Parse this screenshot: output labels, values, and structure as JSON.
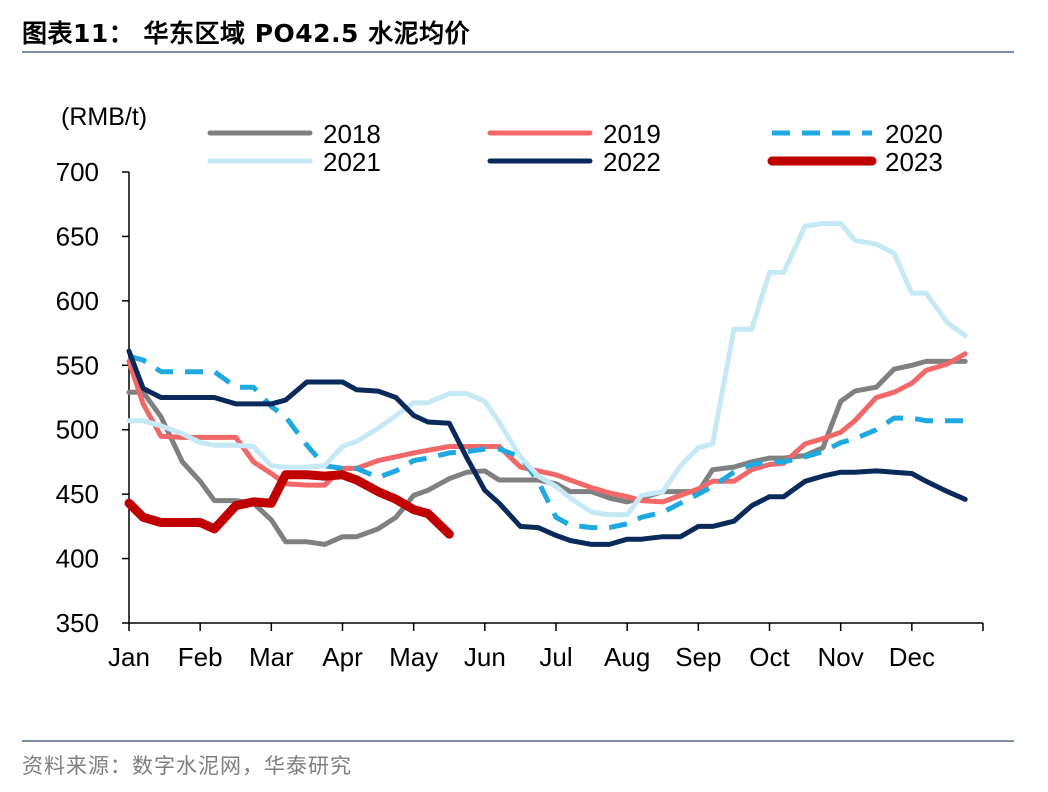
{
  "header": {
    "title": "图表11：  华东区域 PO42.5 水泥均价"
  },
  "footer": {
    "source": "资料来源：数字水泥网，华泰研究"
  },
  "chart_data": {
    "type": "line",
    "title": "图表11：  华东区域 PO42.5 水泥均价",
    "ylabel": "(RMB/t)",
    "xlabel": "",
    "ylim": [
      350,
      700
    ],
    "yticks": [
      350,
      400,
      450,
      500,
      550,
      600,
      650,
      700
    ],
    "xlim": [
      0,
      12
    ],
    "xticks": [
      {
        "label": "Jan",
        "x": 0
      },
      {
        "label": "Feb",
        "x": 1
      },
      {
        "label": "Mar",
        "x": 2
      },
      {
        "label": "Apr",
        "x": 3
      },
      {
        "label": "May",
        "x": 4
      },
      {
        "label": "Jun",
        "x": 5
      },
      {
        "label": "Jul",
        "x": 6
      },
      {
        "label": "Aug",
        "x": 7
      },
      {
        "label": "Sep",
        "x": 8
      },
      {
        "label": "Oct",
        "x": 9
      },
      {
        "label": "Nov",
        "x": 10
      },
      {
        "label": "Dec",
        "x": 11
      }
    ],
    "legend": "top",
    "grid": false,
    "series": [
      {
        "name": "2018",
        "color": "#808080",
        "dash": false,
        "width": 5,
        "points": [
          [
            0.0,
            529
          ],
          [
            0.2,
            529
          ],
          [
            0.45,
            510
          ],
          [
            0.75,
            475
          ],
          [
            1.0,
            460
          ],
          [
            1.2,
            445
          ],
          [
            1.5,
            445
          ],
          [
            1.75,
            443
          ],
          [
            2.0,
            430
          ],
          [
            2.2,
            413
          ],
          [
            2.5,
            413
          ],
          [
            2.75,
            411
          ],
          [
            3.0,
            417
          ],
          [
            3.2,
            417
          ],
          [
            3.5,
            423
          ],
          [
            3.75,
            432
          ],
          [
            4.0,
            449
          ],
          [
            4.2,
            453
          ],
          [
            4.5,
            462
          ],
          [
            4.75,
            467
          ],
          [
            5.0,
            468
          ],
          [
            5.2,
            461
          ],
          [
            5.5,
            461
          ],
          [
            5.75,
            461
          ],
          [
            6.0,
            458
          ],
          [
            6.2,
            452
          ],
          [
            6.5,
            452
          ],
          [
            6.75,
            447
          ],
          [
            7.0,
            444
          ],
          [
            7.2,
            447
          ],
          [
            7.5,
            452
          ],
          [
            7.75,
            452
          ],
          [
            8.0,
            452
          ],
          [
            8.2,
            469
          ],
          [
            8.5,
            471
          ],
          [
            8.75,
            475
          ],
          [
            9.0,
            478
          ],
          [
            9.2,
            478
          ],
          [
            9.5,
            480
          ],
          [
            9.75,
            486
          ],
          [
            10.0,
            522
          ],
          [
            10.2,
            530
          ],
          [
            10.5,
            533
          ],
          [
            10.75,
            547
          ],
          [
            11.0,
            550
          ],
          [
            11.2,
            553
          ],
          [
            11.5,
            553
          ],
          [
            11.75,
            553
          ]
        ]
      },
      {
        "name": "2019",
        "color": "#f26868",
        "dash": false,
        "width": 5,
        "points": [
          [
            0.0,
            553
          ],
          [
            0.2,
            520
          ],
          [
            0.45,
            495
          ],
          [
            0.75,
            494
          ],
          [
            1.0,
            494
          ],
          [
            1.2,
            494
          ],
          [
            1.5,
            494
          ],
          [
            1.75,
            475
          ],
          [
            2.0,
            466
          ],
          [
            2.2,
            458
          ],
          [
            2.5,
            457
          ],
          [
            2.75,
            457
          ],
          [
            3.0,
            470
          ],
          [
            3.2,
            470
          ],
          [
            3.5,
            476
          ],
          [
            3.75,
            479
          ],
          [
            4.0,
            482
          ],
          [
            4.2,
            484
          ],
          [
            4.5,
            487
          ],
          [
            4.75,
            487
          ],
          [
            5.0,
            487
          ],
          [
            5.2,
            487
          ],
          [
            5.5,
            471
          ],
          [
            5.75,
            468
          ],
          [
            6.0,
            465
          ],
          [
            6.2,
            461
          ],
          [
            6.5,
            455
          ],
          [
            6.75,
            451
          ],
          [
            7.0,
            448
          ],
          [
            7.2,
            445
          ],
          [
            7.5,
            444
          ],
          [
            7.75,
            449
          ],
          [
            8.0,
            454
          ],
          [
            8.2,
            460
          ],
          [
            8.5,
            460
          ],
          [
            8.75,
            469
          ],
          [
            9.0,
            473
          ],
          [
            9.2,
            474
          ],
          [
            9.5,
            489
          ],
          [
            9.75,
            493
          ],
          [
            10.0,
            498
          ],
          [
            10.2,
            507
          ],
          [
            10.5,
            525
          ],
          [
            10.75,
            529
          ],
          [
            11.0,
            536
          ],
          [
            11.2,
            546
          ],
          [
            11.5,
            551
          ],
          [
            11.75,
            559
          ]
        ]
      },
      {
        "name": "2020",
        "color": "#1fa9e1",
        "dash": true,
        "width": 5,
        "points": [
          [
            0.0,
            557
          ],
          [
            0.2,
            554
          ],
          [
            0.45,
            545
          ],
          [
            0.75,
            545
          ],
          [
            1.0,
            545
          ],
          [
            1.2,
            545
          ],
          [
            1.5,
            533
          ],
          [
            1.75,
            533
          ],
          [
            2.0,
            518
          ],
          [
            2.2,
            510
          ],
          [
            2.5,
            488
          ],
          [
            2.75,
            472
          ],
          [
            3.0,
            470
          ],
          [
            3.2,
            470
          ],
          [
            3.5,
            463
          ],
          [
            3.75,
            468
          ],
          [
            4.0,
            476
          ],
          [
            4.2,
            478
          ],
          [
            4.5,
            482
          ],
          [
            4.75,
            483
          ],
          [
            5.0,
            485
          ],
          [
            5.2,
            485
          ],
          [
            5.5,
            479
          ],
          [
            5.75,
            460
          ],
          [
            6.0,
            432
          ],
          [
            6.2,
            426
          ],
          [
            6.5,
            424
          ],
          [
            6.75,
            424
          ],
          [
            7.0,
            427
          ],
          [
            7.2,
            432
          ],
          [
            7.5,
            436
          ],
          [
            7.75,
            443
          ],
          [
            8.0,
            450
          ],
          [
            8.2,
            456
          ],
          [
            8.5,
            467
          ],
          [
            8.75,
            473
          ],
          [
            9.0,
            475
          ],
          [
            9.2,
            475
          ],
          [
            9.5,
            479
          ],
          [
            9.75,
            483
          ],
          [
            10.0,
            490
          ],
          [
            10.2,
            493
          ],
          [
            10.5,
            500
          ],
          [
            10.75,
            509
          ],
          [
            11.0,
            509
          ],
          [
            11.2,
            507
          ],
          [
            11.5,
            507
          ],
          [
            11.75,
            507
          ]
        ]
      },
      {
        "name": "2021",
        "color": "#c6e9f6",
        "dash": false,
        "width": 5,
        "points": [
          [
            0.0,
            507
          ],
          [
            0.2,
            507
          ],
          [
            0.45,
            503
          ],
          [
            0.75,
            497
          ],
          [
            1.0,
            490
          ],
          [
            1.2,
            488
          ],
          [
            1.5,
            488
          ],
          [
            1.75,
            487
          ],
          [
            2.0,
            472
          ],
          [
            2.2,
            471
          ],
          [
            2.5,
            471
          ],
          [
            2.75,
            472
          ],
          [
            3.0,
            487
          ],
          [
            3.2,
            491
          ],
          [
            3.5,
            501
          ],
          [
            3.75,
            511
          ],
          [
            4.0,
            521
          ],
          [
            4.2,
            521
          ],
          [
            4.5,
            528
          ],
          [
            4.75,
            528
          ],
          [
            5.0,
            522
          ],
          [
            5.2,
            506
          ],
          [
            5.5,
            479
          ],
          [
            5.75,
            464
          ],
          [
            6.0,
            456
          ],
          [
            6.2,
            447
          ],
          [
            6.5,
            436
          ],
          [
            6.75,
            434
          ],
          [
            7.0,
            434
          ],
          [
            7.2,
            449
          ],
          [
            7.5,
            452
          ],
          [
            7.75,
            472
          ],
          [
            8.0,
            486
          ],
          [
            8.2,
            489
          ],
          [
            8.5,
            578
          ],
          [
            8.75,
            578
          ],
          [
            9.0,
            622
          ],
          [
            9.2,
            622
          ],
          [
            9.5,
            658
          ],
          [
            9.75,
            660
          ],
          [
            10.0,
            660
          ],
          [
            10.2,
            647
          ],
          [
            10.5,
            644
          ],
          [
            10.75,
            637
          ],
          [
            11.0,
            606
          ],
          [
            11.2,
            606
          ],
          [
            11.5,
            583
          ],
          [
            11.75,
            573
          ]
        ]
      },
      {
        "name": "2022",
        "color": "#0b2a5c",
        "dash": false,
        "width": 5,
        "points": [
          [
            0.0,
            561
          ],
          [
            0.2,
            532
          ],
          [
            0.45,
            525
          ],
          [
            0.75,
            525
          ],
          [
            1.0,
            525
          ],
          [
            1.2,
            525
          ],
          [
            1.5,
            520
          ],
          [
            1.75,
            520
          ],
          [
            2.0,
            520
          ],
          [
            2.2,
            523
          ],
          [
            2.5,
            537
          ],
          [
            2.75,
            537
          ],
          [
            3.0,
            537
          ],
          [
            3.2,
            531
          ],
          [
            3.5,
            530
          ],
          [
            3.75,
            525
          ],
          [
            4.0,
            511
          ],
          [
            4.2,
            506
          ],
          [
            4.5,
            505
          ],
          [
            4.75,
            478
          ],
          [
            5.0,
            453
          ],
          [
            5.2,
            443
          ],
          [
            5.5,
            425
          ],
          [
            5.75,
            424
          ],
          [
            6.0,
            418
          ],
          [
            6.2,
            414
          ],
          [
            6.5,
            411
          ],
          [
            6.75,
            411
          ],
          [
            7.0,
            415
          ],
          [
            7.2,
            415
          ],
          [
            7.5,
            417
          ],
          [
            7.75,
            417
          ],
          [
            8.0,
            425
          ],
          [
            8.2,
            425
          ],
          [
            8.5,
            429
          ],
          [
            8.75,
            441
          ],
          [
            9.0,
            448
          ],
          [
            9.2,
            448
          ],
          [
            9.5,
            460
          ],
          [
            9.75,
            464
          ],
          [
            10.0,
            467
          ],
          [
            10.2,
            467
          ],
          [
            10.5,
            468
          ],
          [
            10.75,
            467
          ],
          [
            11.0,
            466
          ],
          [
            11.2,
            460
          ],
          [
            11.5,
            452
          ],
          [
            11.75,
            446
          ]
        ]
      },
      {
        "name": "2023",
        "color": "#c00000",
        "dash": false,
        "width": 9,
        "points": [
          [
            0.0,
            443
          ],
          [
            0.2,
            432
          ],
          [
            0.45,
            428
          ],
          [
            0.75,
            428
          ],
          [
            1.0,
            428
          ],
          [
            1.2,
            423
          ],
          [
            1.5,
            441
          ],
          [
            1.75,
            444
          ],
          [
            2.0,
            443
          ],
          [
            2.2,
            465
          ],
          [
            2.5,
            465
          ],
          [
            2.75,
            464
          ],
          [
            3.0,
            465
          ],
          [
            3.2,
            461
          ],
          [
            3.5,
            452
          ],
          [
            3.75,
            446
          ],
          [
            4.0,
            438
          ],
          [
            4.2,
            435
          ],
          [
            4.5,
            419
          ]
        ]
      }
    ]
  }
}
